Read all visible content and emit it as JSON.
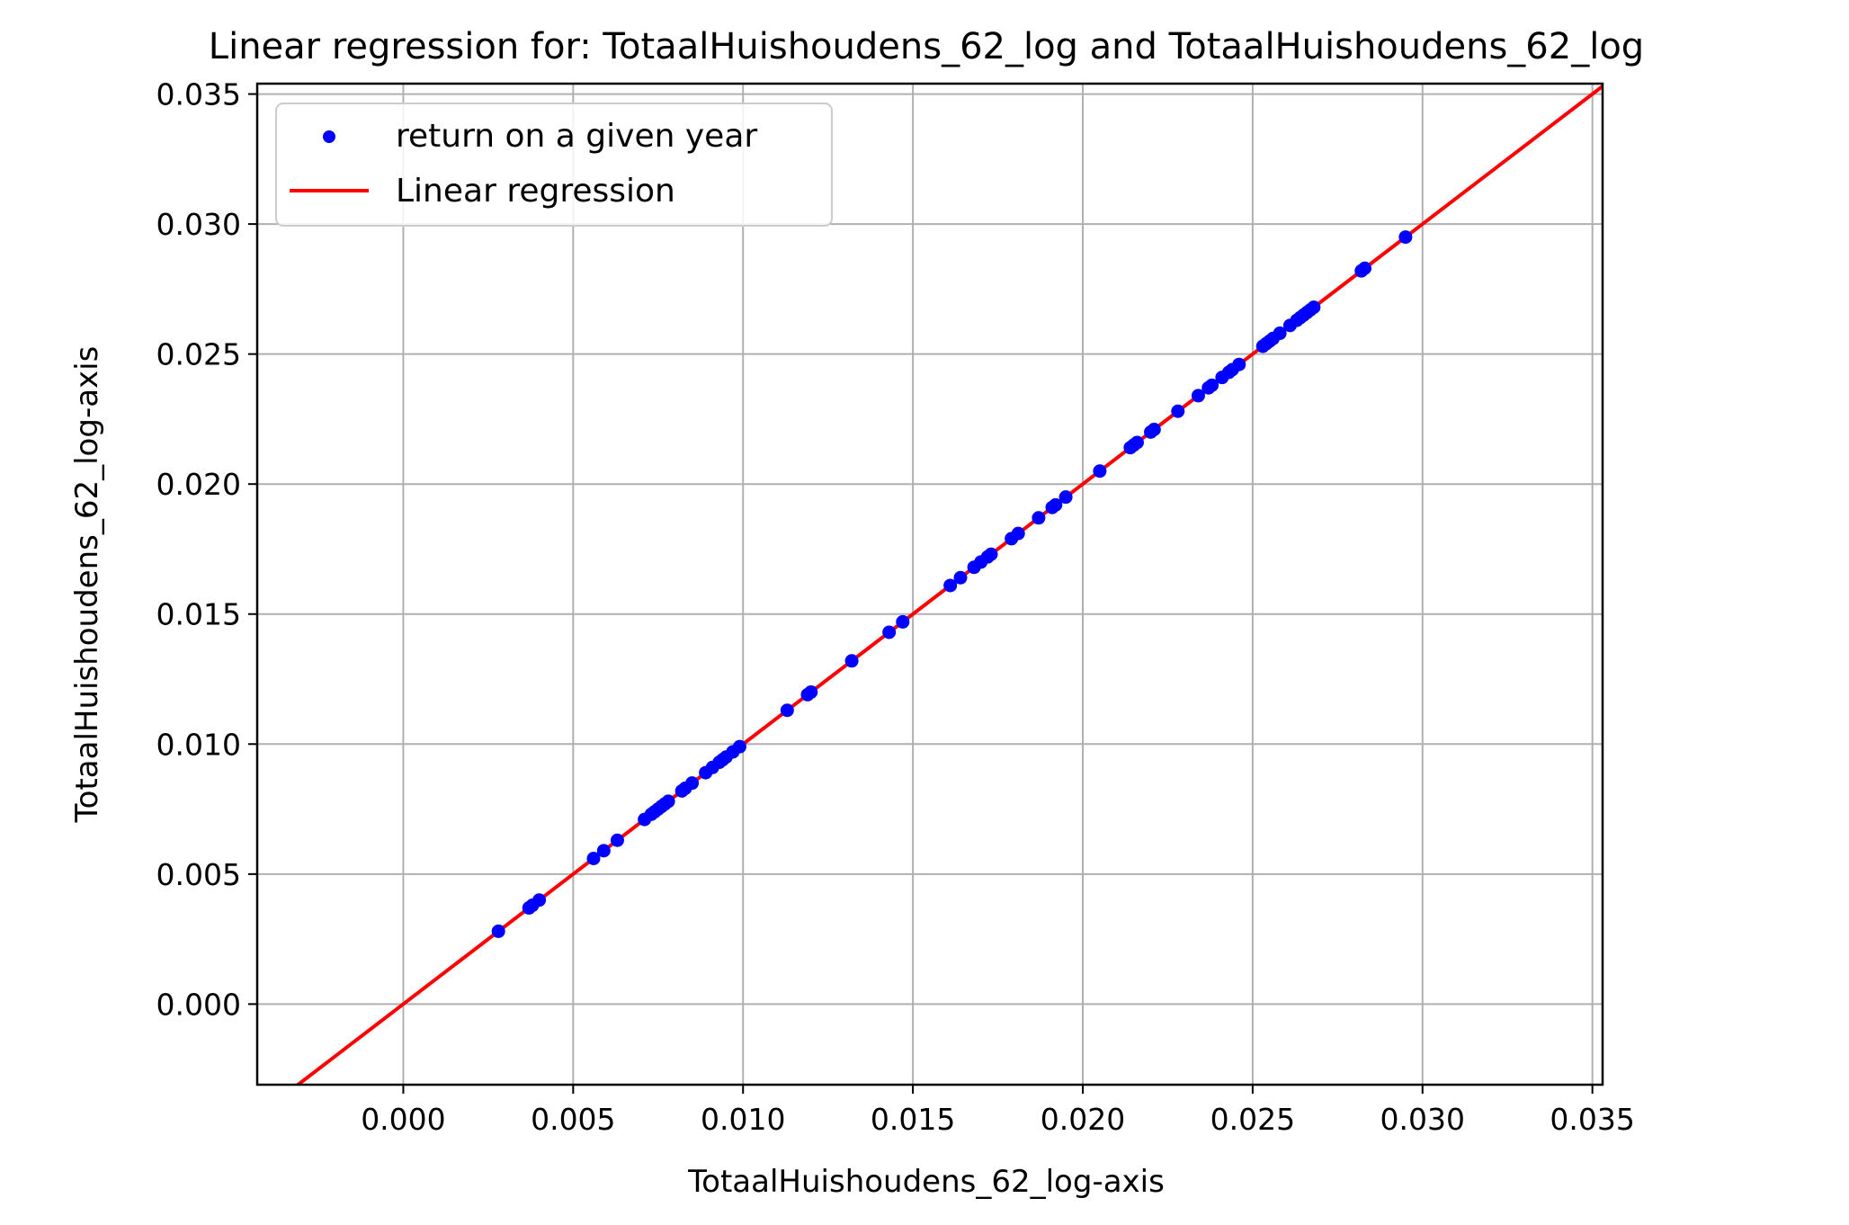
{
  "chart_data": {
    "type": "scatter",
    "title": "Linear regression for: TotaalHuishoudens_62_log and TotaalHuishoudens_62_log",
    "xlabel": "TotaalHuishoudens_62_log-axis",
    "ylabel": "TotaalHuishoudens_62_log-axis",
    "xlim": [
      -0.0043,
      0.0353
    ],
    "ylim": [
      -0.0031,
      0.0354
    ],
    "xticks": [
      0.0,
      0.005,
      0.01,
      0.015,
      0.02,
      0.025,
      0.03,
      0.035
    ],
    "xtick_labels": [
      "0.000",
      "0.005",
      "0.010",
      "0.015",
      "0.020",
      "0.025",
      "0.030",
      "0.035"
    ],
    "yticks": [
      0.0,
      0.005,
      0.01,
      0.015,
      0.02,
      0.025,
      0.03,
      0.035
    ],
    "ytick_labels": [
      "0.000",
      "0.005",
      "0.010",
      "0.015",
      "0.020",
      "0.025",
      "0.030",
      "0.035"
    ],
    "grid": true,
    "legend_position": "top-left",
    "series": [
      {
        "name": "return on a given year",
        "kind": "scatter",
        "color": "#0000ff",
        "x": [
          0.0028,
          0.0037,
          0.0038,
          0.004,
          0.0056,
          0.0059,
          0.0063,
          0.0071,
          0.0073,
          0.0074,
          0.0075,
          0.0076,
          0.0077,
          0.0078,
          0.0082,
          0.0083,
          0.0085,
          0.0089,
          0.0091,
          0.0093,
          0.0094,
          0.0095,
          0.0097,
          0.0099,
          0.0113,
          0.0119,
          0.012,
          0.0132,
          0.0143,
          0.0147,
          0.0161,
          0.0164,
          0.0168,
          0.017,
          0.0172,
          0.0173,
          0.0179,
          0.0181,
          0.0187,
          0.0191,
          0.0192,
          0.0195,
          0.0205,
          0.0214,
          0.0215,
          0.0216,
          0.022,
          0.0221,
          0.0228,
          0.0234,
          0.0237,
          0.0238,
          0.0241,
          0.0243,
          0.0244,
          0.0246,
          0.0253,
          0.0254,
          0.0255,
          0.0256,
          0.0258,
          0.0261,
          0.0263,
          0.0264,
          0.0265,
          0.0266,
          0.0267,
          0.0268,
          0.0282,
          0.0283,
          0.0295
        ],
        "y": [
          0.0028,
          0.0037,
          0.0038,
          0.004,
          0.0056,
          0.0059,
          0.0063,
          0.0071,
          0.0073,
          0.0074,
          0.0075,
          0.0076,
          0.0077,
          0.0078,
          0.0082,
          0.0083,
          0.0085,
          0.0089,
          0.0091,
          0.0093,
          0.0094,
          0.0095,
          0.0097,
          0.0099,
          0.0113,
          0.0119,
          0.012,
          0.0132,
          0.0143,
          0.0147,
          0.0161,
          0.0164,
          0.0168,
          0.017,
          0.0172,
          0.0173,
          0.0179,
          0.0181,
          0.0187,
          0.0191,
          0.0192,
          0.0195,
          0.0205,
          0.0214,
          0.0215,
          0.0216,
          0.022,
          0.0221,
          0.0228,
          0.0234,
          0.0237,
          0.0238,
          0.0241,
          0.0243,
          0.0244,
          0.0246,
          0.0253,
          0.0254,
          0.0255,
          0.0256,
          0.0258,
          0.0261,
          0.0263,
          0.0264,
          0.0265,
          0.0266,
          0.0267,
          0.0268,
          0.0282,
          0.0283,
          0.0295
        ]
      },
      {
        "name": "Linear regression",
        "kind": "line",
        "color": "#ff0000",
        "x": [
          -0.0043,
          0.0353
        ],
        "y": [
          -0.0043,
          0.0353
        ]
      }
    ]
  }
}
